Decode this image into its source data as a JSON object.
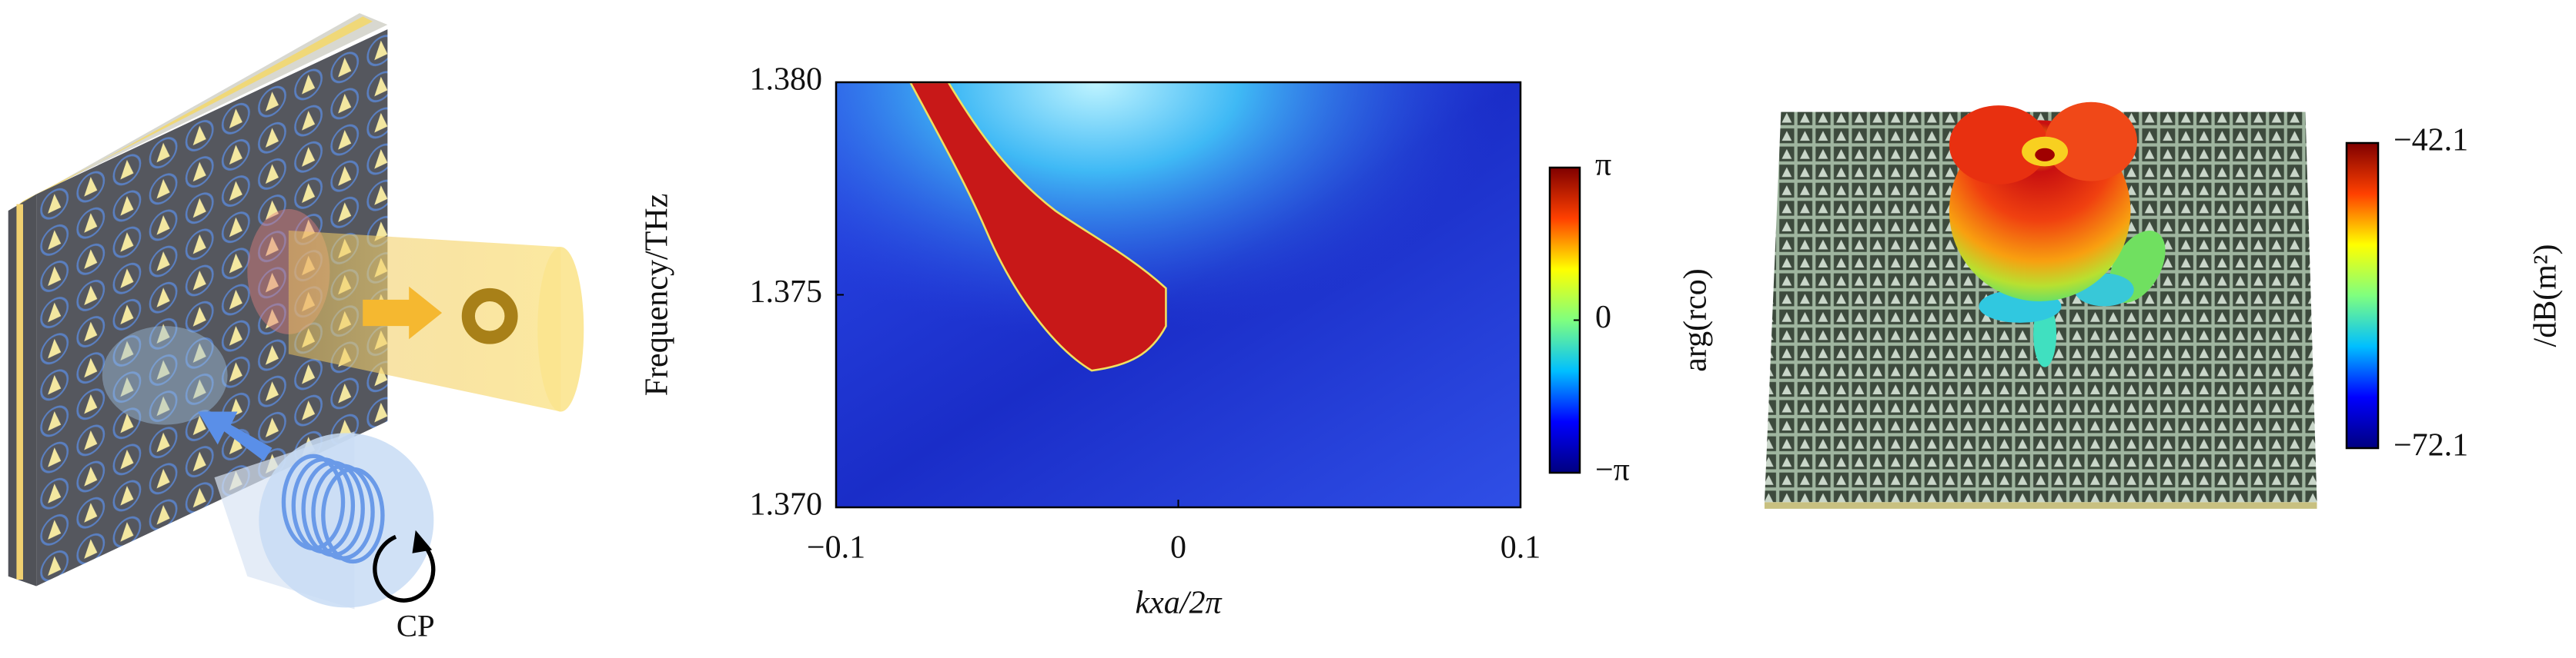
{
  "diagram": {
    "label": "CP"
  },
  "chart_data": [
    {
      "type": "heatmap",
      "xlabel": "kxa/2π",
      "ylabel": "Frequency/THz",
      "xlim": [
        -0.1,
        0.1
      ],
      "xticks": [
        {
          "value": -0.1,
          "label": "−0.1"
        },
        0,
        0.1
      ],
      "ylim": [
        1.37,
        1.38
      ],
      "yticks": [
        {
          "value": 1.37,
          "label": "1.370"
        },
        {
          "value": 1.375,
          "label": "1.375"
        },
        {
          "value": 1.38,
          "label": "1.380"
        }
      ],
      "colormap": [
        "#00007f",
        "#0000ff",
        "#00bfff",
        "#7fff7f",
        "#ffff00",
        "#ff4000",
        "#7f0000"
      ],
      "colorbar": {
        "label": "arg(rco)",
        "lim": [
          -3.14159,
          3.14159
        ],
        "ticks": [
          {
            "value": -3.14159,
            "label": "−π"
          },
          0,
          {
            "value": 3.14159,
            "label": "π"
          }
        ]
      }
    },
    {
      "type": "radiation-pattern",
      "colormap": [
        "#00007f",
        "#0000ff",
        "#00bfff",
        "#7fff7f",
        "#ffff00",
        "#ff4000",
        "#7f0000"
      ],
      "colorbar": {
        "label": "/dB(m²)",
        "lim": [
          -72.1,
          -42.1
        ],
        "ticks": [
          {
            "value": -72.1,
            "label": "−72.1"
          },
          {
            "value": -42.1,
            "label": "−42.1"
          }
        ]
      }
    }
  ]
}
